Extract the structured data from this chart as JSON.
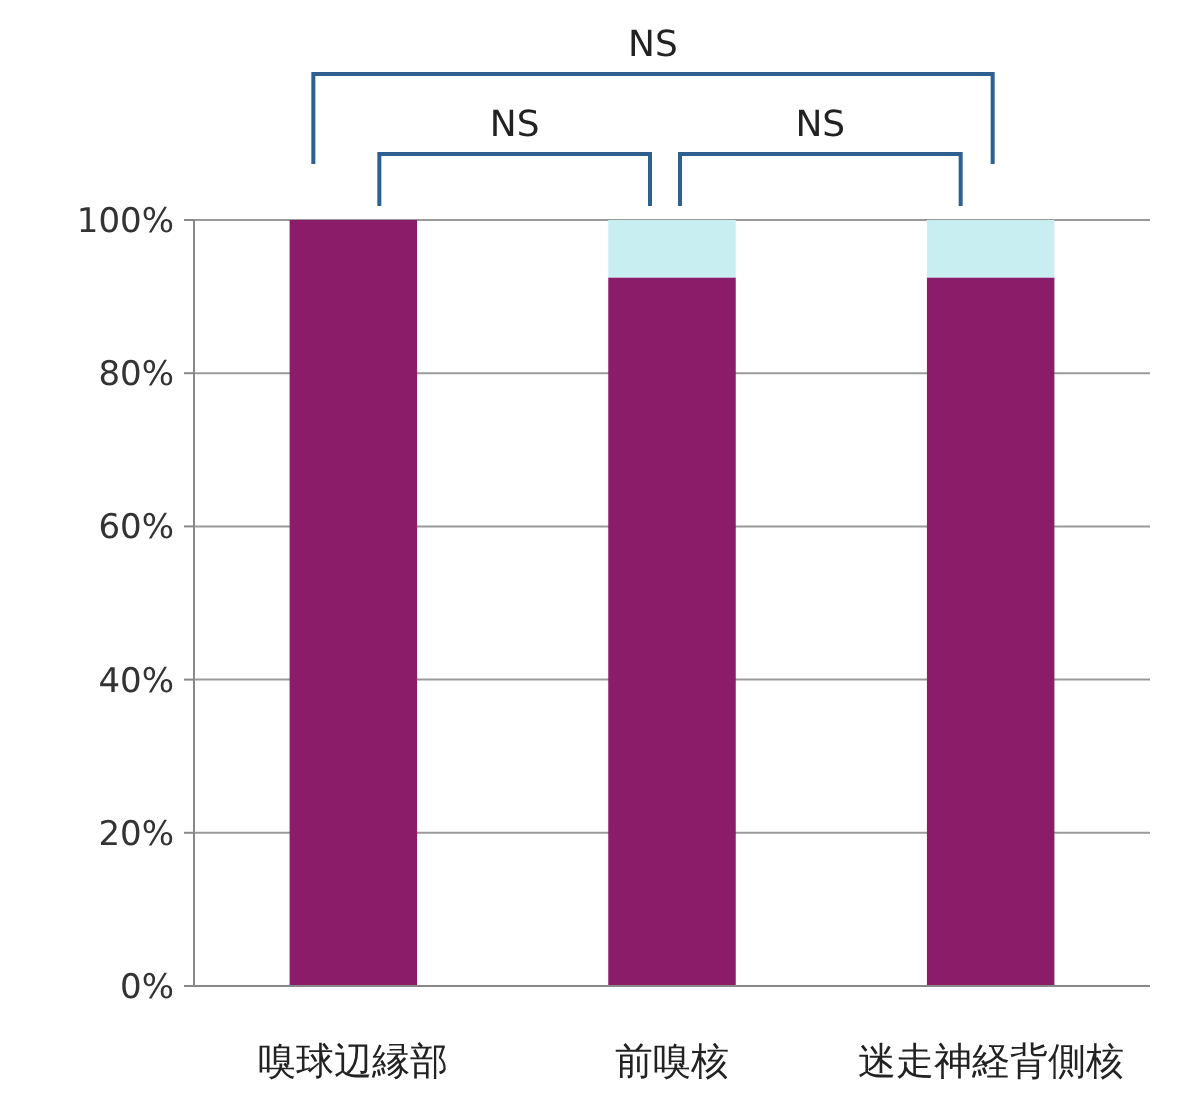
{
  "chart_data": {
    "type": "bar",
    "stacked": true,
    "categories": [
      "嗅球辺縁部",
      "前嗅核",
      "迷走神経背側核"
    ],
    "series": [
      {
        "color": "#8b1c6a",
        "values": [
          100,
          92.5,
          92.5
        ]
      },
      {
        "color": "#c9eef2",
        "values": [
          0,
          7.5,
          7.5
        ]
      }
    ],
    "ylim": [
      0,
      100
    ],
    "yticks": [
      {
        "value": 0,
        "label": "0%"
      },
      {
        "value": 20,
        "label": "20%"
      },
      {
        "value": 40,
        "label": "40%"
      },
      {
        "value": 60,
        "label": "60%"
      },
      {
        "value": 80,
        "label": "80%"
      },
      {
        "value": 100,
        "label": "100%"
      }
    ],
    "grid": "y",
    "annotations": [
      "NS",
      "NS",
      "NS"
    ]
  }
}
